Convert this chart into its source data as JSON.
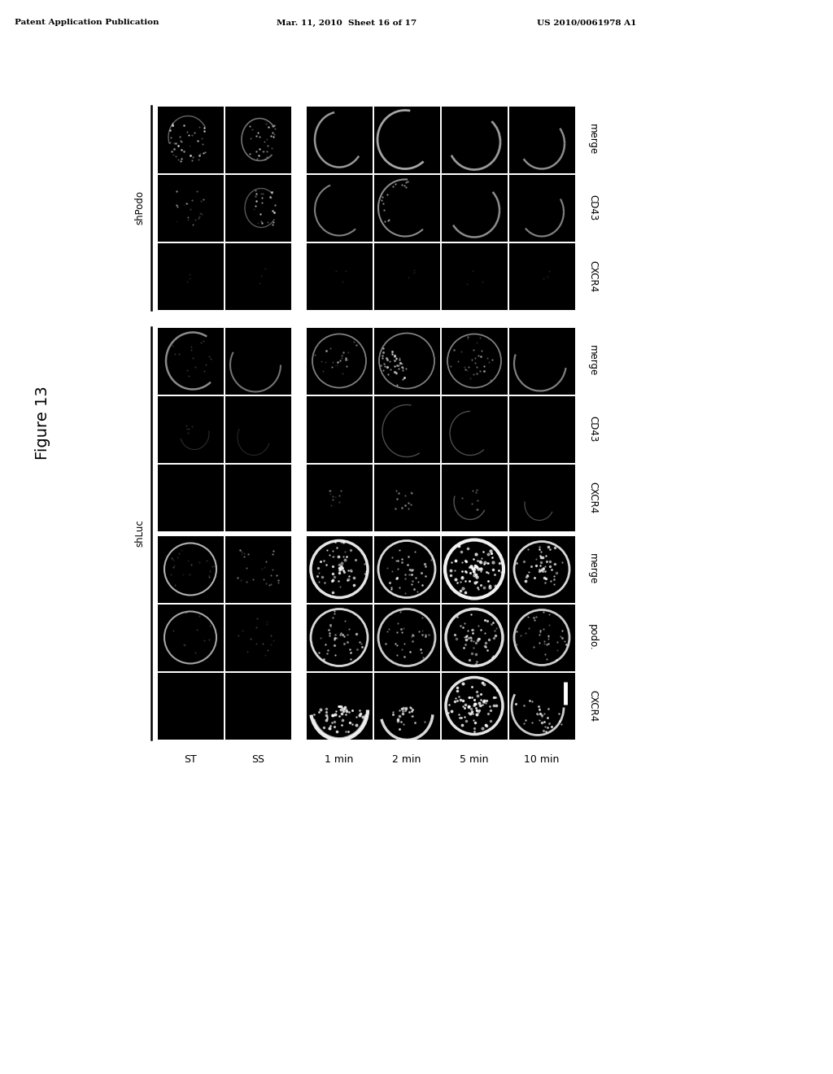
{
  "header_left": "Patent Application Publication",
  "header_center": "Mar. 11, 2010  Sheet 16 of 17",
  "header_right": "US 2010/0061978 A1",
  "figure_label": "Figure 13",
  "col_labels": [
    "ST",
    "SS",
    "1 min",
    "2 min",
    "5 min",
    "10 min"
  ],
  "shpodo_row_labels": [
    "merge",
    "CD43",
    "CXCR4"
  ],
  "shluc_top_labels": [
    "merge",
    "CD43",
    "CXCR4"
  ],
  "shluc_bot_labels": [
    "merge",
    "podo.",
    "CXCR4"
  ],
  "group_labels": [
    "shPodo",
    "shLuc"
  ],
  "bg_color": "#ffffff",
  "cell_bg": "#000000"
}
